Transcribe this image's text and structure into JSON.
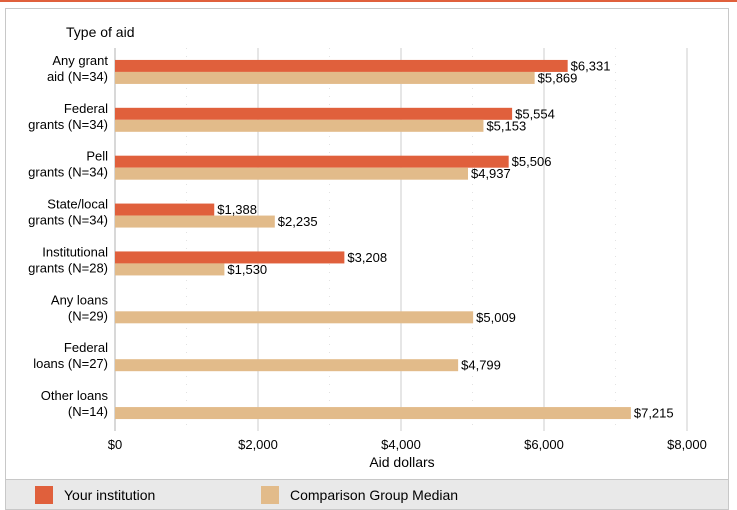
{
  "chart_data": {
    "type": "bar",
    "orientation": "horizontal",
    "title": "Type of aid",
    "xlabel": "Aid dollars",
    "ylabel": "",
    "xlim": [
      0,
      8000
    ],
    "x_ticks": [
      "$0",
      "$2,000",
      "$4,000",
      "$6,000",
      "$8,000"
    ],
    "grid": true,
    "legend_position": "bottom",
    "categories": [
      [
        "Any grant",
        "aid (N=34)"
      ],
      [
        "Federal",
        "grants (N=34)"
      ],
      [
        "Pell",
        "grants (N=34)"
      ],
      [
        "State/local",
        "grants (N=34)"
      ],
      [
        "Institutional",
        "grants (N=28)"
      ],
      [
        "Any loans",
        "(N=29)"
      ],
      [
        "Federal",
        "loans (N=27)"
      ],
      [
        "Other loans",
        "(N=14)"
      ]
    ],
    "series": [
      {
        "name": "Your institution",
        "color": "#e0603c",
        "values": [
          6331,
          5554,
          5506,
          1388,
          3208,
          null,
          null,
          null
        ],
        "labels": [
          "$6,331",
          "$5,554",
          "$5,506",
          "$1,388",
          "$3,208",
          null,
          null,
          null
        ]
      },
      {
        "name": "Comparison Group Median",
        "color": "#e2bb8a",
        "values": [
          5869,
          5153,
          4937,
          2235,
          1530,
          5009,
          4799,
          7215
        ],
        "labels": [
          "$5,869",
          "$5,153",
          "$4,937",
          "$2,235",
          "$1,530",
          "$5,009",
          "$4,799",
          "$7,215"
        ]
      }
    ]
  }
}
